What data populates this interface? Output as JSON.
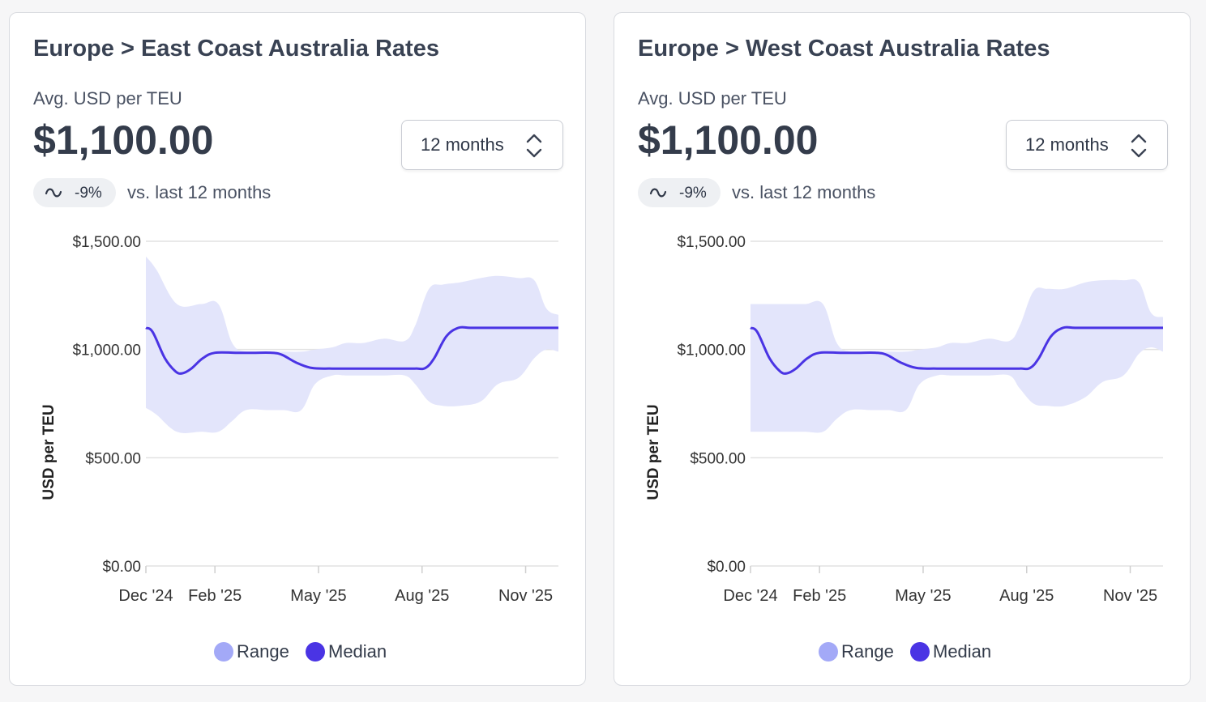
{
  "colors": {
    "range_fill": "#e3e5fb",
    "range_legend": "#a3a9f7",
    "median_line": "#4a34e4",
    "grid": "#e2e2e2",
    "axis_text": "#333333"
  },
  "icons": {
    "select": "up-down-chevron-icon",
    "trend": "tilde-wave-icon"
  },
  "cards": [
    {
      "title": "Europe > East Coast Australia Rates",
      "metric_label": "Avg. USD per TEU",
      "metric_value": "$1,100.00",
      "period_select": "12 months",
      "change_pct": "-9%",
      "change_text": "vs. last 12 months"
    },
    {
      "title": "Europe > West Coast Australia Rates",
      "metric_label": "Avg. USD per TEU",
      "metric_value": "$1,100.00",
      "period_select": "12 months",
      "change_pct": "-9%",
      "change_text": "vs. last 12 months"
    }
  ],
  "chart_data": [
    {
      "type": "area",
      "ylabel": "USD per TEU",
      "ylim": [
        0,
        1500
      ],
      "yticks": [
        0,
        500,
        1000,
        1500
      ],
      "ytick_labels": [
        "$0.00",
        "$500.00",
        "$1,000.00",
        "$1,500.00"
      ],
      "xlim": [
        0,
        11.95
      ],
      "xticks": [
        0,
        2,
        5,
        8,
        11
      ],
      "xtick_labels": [
        "Dec '24",
        "Feb '25",
        "May '25",
        "Aug '25",
        "Nov '25"
      ],
      "grid": true,
      "legend": [
        "Range",
        "Median"
      ],
      "legend_position": "bottom-center",
      "series": [
        {
          "name": "Range",
          "x": [
            0,
            0.3,
            0.9,
            1.6,
            2.1,
            2.5,
            2.9,
            3.5,
            4.0,
            4.5,
            4.9,
            5.4,
            5.8,
            6.3,
            6.9,
            7.5,
            7.8,
            8.2,
            8.6,
            9.1,
            9.7,
            10.2,
            10.8,
            11.25,
            11.6,
            11.95
          ],
          "low": [
            730,
            700,
            620,
            620,
            620,
            670,
            720,
            720,
            720,
            720,
            840,
            880,
            880,
            880,
            880,
            880,
            840,
            760,
            740,
            740,
            760,
            840,
            870,
            960,
            1000,
            990
          ],
          "high": [
            1430,
            1370,
            1210,
            1210,
            1210,
            1030,
            990,
            990,
            990,
            990,
            1000,
            1010,
            1030,
            1030,
            1050,
            1040,
            1110,
            1280,
            1300,
            1310,
            1330,
            1340,
            1330,
            1320,
            1190,
            1160
          ]
        },
        {
          "name": "Median",
          "x": [
            0,
            0.2,
            0.55,
            0.85,
            1.05,
            1.3,
            1.65,
            2.0,
            2.6,
            3.1,
            3.65,
            3.95,
            4.35,
            4.8,
            5.4,
            6.0,
            6.6,
            7.2,
            7.8,
            8.1,
            8.35,
            8.7,
            9.05,
            9.4,
            10.0,
            10.6,
            11.2,
            11.95
          ],
          "median": [
            1100,
            1080,
            960,
            900,
            890,
            910,
            960,
            985,
            985,
            985,
            985,
            975,
            940,
            915,
            912,
            912,
            912,
            912,
            912,
            915,
            960,
            1060,
            1100,
            1100,
            1100,
            1100,
            1100,
            1100
          ]
        }
      ]
    },
    {
      "type": "area",
      "ylabel": "USD per TEU",
      "ylim": [
        0,
        1500
      ],
      "yticks": [
        0,
        500,
        1000,
        1500
      ],
      "ytick_labels": [
        "$0.00",
        "$500.00",
        "$1,000.00",
        "$1,500.00"
      ],
      "xlim": [
        0,
        11.95
      ],
      "xticks": [
        0,
        2,
        5,
        8,
        11
      ],
      "xtick_labels": [
        "Dec '24",
        "Feb '25",
        "May '25",
        "Aug '25",
        "Nov '25"
      ],
      "grid": true,
      "legend": [
        "Range",
        "Median"
      ],
      "legend_position": "bottom-center",
      "series": [
        {
          "name": "Range",
          "x": [
            0,
            0.6,
            1.2,
            1.6,
            2.1,
            2.5,
            2.9,
            3.5,
            4.0,
            4.5,
            4.9,
            5.4,
            5.8,
            6.3,
            6.9,
            7.5,
            7.8,
            8.2,
            8.6,
            9.1,
            9.7,
            10.2,
            10.8,
            11.25,
            11.6,
            11.95
          ],
          "low": [
            620,
            620,
            620,
            620,
            620,
            680,
            720,
            720,
            720,
            720,
            840,
            880,
            880,
            880,
            880,
            880,
            820,
            750,
            740,
            740,
            780,
            850,
            880,
            980,
            1010,
            990
          ],
          "high": [
            1210,
            1210,
            1210,
            1210,
            1210,
            1030,
            990,
            990,
            990,
            990,
            1000,
            1010,
            1030,
            1030,
            1050,
            1040,
            1110,
            1270,
            1280,
            1280,
            1310,
            1320,
            1320,
            1310,
            1170,
            1150
          ]
        },
        {
          "name": "Median",
          "x": [
            0,
            0.2,
            0.55,
            0.85,
            1.05,
            1.3,
            1.65,
            2.0,
            2.6,
            3.1,
            3.65,
            3.95,
            4.35,
            4.8,
            5.4,
            6.0,
            6.6,
            7.2,
            7.8,
            8.1,
            8.35,
            8.7,
            9.05,
            9.4,
            10.0,
            10.6,
            11.2,
            11.95
          ],
          "median": [
            1100,
            1080,
            960,
            900,
            890,
            910,
            960,
            985,
            985,
            985,
            985,
            975,
            940,
            915,
            912,
            912,
            912,
            912,
            912,
            915,
            960,
            1060,
            1100,
            1100,
            1100,
            1100,
            1100,
            1100
          ]
        }
      ]
    }
  ]
}
